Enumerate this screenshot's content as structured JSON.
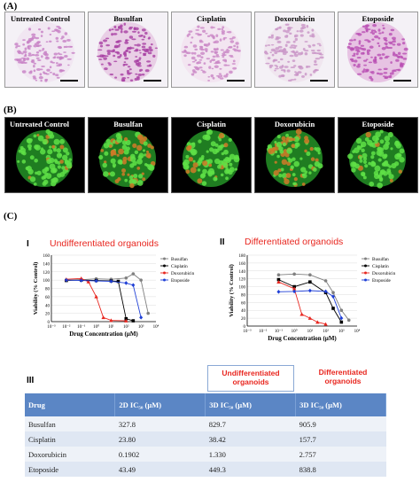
{
  "panel_a": {
    "label": "(A)",
    "tiles": [
      "Untreated Control",
      "Busulfan",
      "Cisplatin",
      "Doxorubicin",
      "Etoposide"
    ]
  },
  "panel_b": {
    "label": "(B)",
    "tiles": [
      "Untreated Control",
      "Busulfan",
      "Cisplatin",
      "Doxorubicin",
      "Etoposide"
    ]
  },
  "panel_c": {
    "label": "(C)"
  },
  "chart_i": {
    "roman": "I",
    "title": "Undifferentiated organoids"
  },
  "chart_ii": {
    "roman": "II",
    "title": "Differentiated organoids"
  },
  "chart_data": [
    {
      "type": "line",
      "title": "Undifferentiated organoids",
      "xlabel": "Drug Concentration (µM)",
      "ylabel": "Viability (% Control)",
      "x_scale": "log",
      "xlim": [
        0.001,
        10000
      ],
      "ylim": [
        0,
        160
      ],
      "yticks": [
        0,
        20,
        40,
        60,
        80,
        100,
        120,
        140,
        160
      ],
      "xtick_labels": [
        "10⁻³",
        "10⁻²",
        "10⁻¹",
        "10⁰",
        "10¹",
        "10²",
        "10³",
        "10⁴"
      ],
      "legend_position": "right",
      "series": [
        {
          "name": "Busulfan",
          "color": "#808080",
          "marker": "circle",
          "x": [
            0.01,
            0.1,
            1,
            10,
            100,
            300,
            1000,
            3000
          ],
          "y": [
            100,
            101,
            103,
            102,
            105,
            115,
            100,
            20
          ]
        },
        {
          "name": "Cisplatin",
          "color": "#000000",
          "marker": "square",
          "x": [
            0.01,
            0.1,
            1,
            10,
            30,
            100,
            300
          ],
          "y": [
            99,
            100,
            99,
            98,
            97,
            7,
            2
          ]
        },
        {
          "name": "Doxorubicin",
          "color": "#e8261f",
          "marker": "triangle",
          "x": [
            0.01,
            0.1,
            0.3,
            1,
            3,
            10,
            100
          ],
          "y": [
            102,
            104,
            96,
            60,
            10,
            3,
            2
          ]
        },
        {
          "name": "Etoposide",
          "color": "#1f3fd6",
          "marker": "diamond",
          "x": [
            0.01,
            0.1,
            1,
            10,
            100,
            300,
            1000
          ],
          "y": [
            100,
            99,
            98,
            97,
            93,
            88,
            10
          ]
        }
      ]
    },
    {
      "type": "line",
      "title": "Differentiated organoids",
      "xlabel": "Drug Concentration (µM)",
      "ylabel": "Viability (% Control)",
      "x_scale": "log",
      "xlim": [
        0.001,
        10000
      ],
      "ylim": [
        0,
        180
      ],
      "yticks": [
        0,
        20,
        40,
        60,
        80,
        100,
        120,
        140,
        160,
        180
      ],
      "xtick_labels": [
        "10⁻³",
        "10⁻²",
        "10⁻¹",
        "10⁰",
        "10¹",
        "10²",
        "10³",
        "10⁴"
      ],
      "legend_position": "right",
      "series": [
        {
          "name": "Busulfan",
          "color": "#808080",
          "marker": "circle",
          "x": [
            0.1,
            1,
            10,
            100,
            300,
            1000,
            3000
          ],
          "y": [
            130,
            132,
            130,
            115,
            85,
            40,
            15
          ]
        },
        {
          "name": "Cisplatin",
          "color": "#000000",
          "marker": "square",
          "x": [
            0.1,
            1,
            10,
            100,
            300,
            1000
          ],
          "y": [
            118,
            100,
            112,
            85,
            45,
            10
          ]
        },
        {
          "name": "Doxorubicin",
          "color": "#e8261f",
          "marker": "triangle",
          "x": [
            0.1,
            1,
            3,
            10,
            30,
            100
          ],
          "y": [
            112,
            95,
            30,
            20,
            10,
            5
          ]
        },
        {
          "name": "Etoposide",
          "color": "#1f3fd6",
          "marker": "diamond",
          "x": [
            0.1,
            1,
            10,
            100,
            300,
            1000
          ],
          "y": [
            87,
            88,
            90,
            88,
            75,
            20
          ]
        }
      ]
    }
  ],
  "table": {
    "roman": "III",
    "group_headers": [
      "Undifferentiated organoids",
      "Differentiated organoids"
    ],
    "columns": [
      "Drug",
      "2D IC₅₀ (µM)",
      "3D IC₅₀  (µM)",
      "3D IC₅₀ (µM)"
    ],
    "rows": [
      [
        "Busulfan",
        "327.8",
        "829.7",
        "905.9"
      ],
      [
        "Cisplatin",
        "23.80",
        "38.42",
        "157.7"
      ],
      [
        "Doxorubicin",
        "0.1902",
        "1.330",
        "2.757"
      ],
      [
        "Etoposide",
        "43.49",
        "449.3",
        "838.8"
      ]
    ]
  },
  "colors": {
    "header_blue": "#5b86c5",
    "title_red": "#e8261f",
    "he_purple": "#b84ea8",
    "fluor_green": "#39c23a"
  }
}
